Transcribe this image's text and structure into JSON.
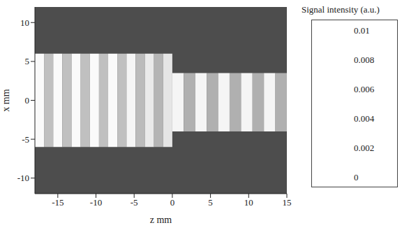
{
  "chart_data": {
    "type": "heatmap",
    "x_label": "z mm",
    "y_label": "x mm",
    "xlim": [
      -18,
      15
    ],
    "xticks": [
      -15,
      -10,
      -5,
      0,
      5,
      10,
      15
    ],
    "ylim": [
      -12,
      12
    ],
    "yticks": [
      -10,
      -5,
      0,
      5,
      10
    ],
    "colorbar": {
      "title": "Signal intensity (a.u.)",
      "range": [
        0,
        0.01
      ],
      "ticks": [
        0,
        0.002,
        0.004,
        0.006,
        0.008,
        0.01
      ]
    },
    "cells": [
      {
        "z": [
          -18,
          15
        ],
        "x": [
          -12,
          12
        ],
        "value": 0.0012
      },
      {
        "z": [
          -18,
          -16.8
        ],
        "x": [
          -6,
          6
        ],
        "value": 0.0078
      },
      {
        "z": [
          -16.8,
          -15.6
        ],
        "x": [
          -6,
          6
        ],
        "value": 0.0056
      },
      {
        "z": [
          -15.6,
          -14.4
        ],
        "x": [
          -6,
          6
        ],
        "value": 0.0078
      },
      {
        "z": [
          -14.4,
          -13.2
        ],
        "x": [
          -6,
          6
        ],
        "value": 0.0056
      },
      {
        "z": [
          -13.2,
          -12
        ],
        "x": [
          -6,
          6
        ],
        "value": 0.0078
      },
      {
        "z": [
          -12,
          -10.8
        ],
        "x": [
          -6,
          6
        ],
        "value": 0.0056
      },
      {
        "z": [
          -10.8,
          -9.6
        ],
        "x": [
          -6,
          6
        ],
        "value": 0.0078
      },
      {
        "z": [
          -9.6,
          -8.4
        ],
        "x": [
          -6,
          6
        ],
        "value": 0.0056
      },
      {
        "z": [
          -8.4,
          -7.2
        ],
        "x": [
          -6,
          6
        ],
        "value": 0.0078
      },
      {
        "z": [
          -7.2,
          -6
        ],
        "x": [
          -6,
          6
        ],
        "value": 0.0056
      },
      {
        "z": [
          -6,
          -4.8
        ],
        "x": [
          -6,
          6
        ],
        "value": 0.0076
      },
      {
        "z": [
          -4.8,
          -3.6
        ],
        "x": [
          -6,
          6
        ],
        "value": 0.0054
      },
      {
        "z": [
          -3.6,
          -2.4
        ],
        "x": [
          -6,
          6
        ],
        "value": 0.0072
      },
      {
        "z": [
          -2.4,
          -1.2
        ],
        "x": [
          -6,
          6
        ],
        "value": 0.0052
      },
      {
        "z": [
          -1.2,
          0
        ],
        "x": [
          -6,
          6
        ],
        "value": 0.007
      },
      {
        "z": [
          0,
          1.5
        ],
        "x": [
          -4,
          3.5
        ],
        "value": 0.0076
      },
      {
        "z": [
          1.5,
          3
        ],
        "x": [
          -4,
          3.5
        ],
        "value": 0.005
      },
      {
        "z": [
          3,
          4.5
        ],
        "x": [
          -4,
          3.5
        ],
        "value": 0.0076
      },
      {
        "z": [
          4.5,
          6
        ],
        "x": [
          -4,
          3.5
        ],
        "value": 0.005
      },
      {
        "z": [
          6,
          7.5
        ],
        "x": [
          -4,
          3.5
        ],
        "value": 0.0076
      },
      {
        "z": [
          7.5,
          9
        ],
        "x": [
          -4,
          3.5
        ],
        "value": 0.005
      },
      {
        "z": [
          9,
          10.5
        ],
        "x": [
          -4,
          3.5
        ],
        "value": 0.0076
      },
      {
        "z": [
          10.5,
          12
        ],
        "x": [
          -4,
          3.5
        ],
        "value": 0.005
      },
      {
        "z": [
          12,
          13.5
        ],
        "x": [
          -4,
          3.5
        ],
        "value": 0.0076
      },
      {
        "z": [
          13.5,
          15
        ],
        "x": [
          -4,
          3.5
        ],
        "value": 0.005
      }
    ]
  }
}
